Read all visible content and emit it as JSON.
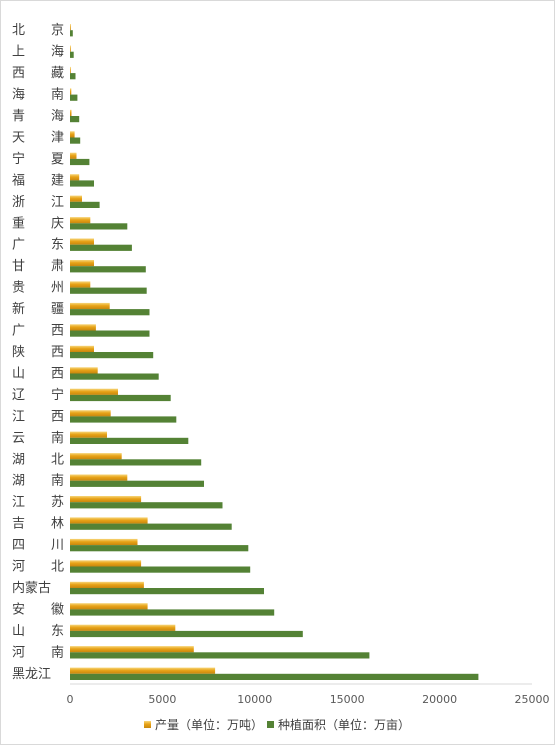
{
  "chart_data": {
    "type": "bar",
    "orientation": "horizontal",
    "categories": [
      "北京",
      "上海",
      "西藏",
      "海南",
      "青海",
      "天津",
      "宁夏",
      "福建",
      "浙江",
      "重庆",
      "广东",
      "甘肃",
      "贵州",
      "新疆",
      "广西",
      "陕西",
      "山西",
      "辽宁",
      "江西",
      "云南",
      "湖北",
      "湖南",
      "江苏",
      "吉林",
      "四川",
      "河北",
      "内蒙古",
      "安徽",
      "山东",
      "河南",
      "黑龙江"
    ],
    "category_display": [
      "北　　京",
      "上　　海",
      "西　　藏",
      "海　　南",
      "青　　海",
      "天　　津",
      "宁　　夏",
      "福　　建",
      "浙　　江",
      "重　　庆",
      "广　　东",
      "甘　　肃",
      "贵　　州",
      "新　　疆",
      "广　　西",
      "陕　　西",
      "山　　西",
      "辽　　宁",
      "江　　西",
      "云　　南",
      "湖　　北",
      "湖　　南",
      "江　　苏",
      "吉　　林",
      "四　　川",
      "河　　北",
      "内蒙古",
      "安　　徽",
      "山　　东",
      "河　　南",
      "黑龙江"
    ],
    "series": [
      {
        "name": "产量（单位：万吨）",
        "color": "#e8a317",
        "values": [
          15,
          10,
          45,
          70,
          80,
          250,
          350,
          500,
          650,
          1100,
          1300,
          1300,
          1100,
          2150,
          1400,
          1300,
          1500,
          2600,
          2200,
          2000,
          2800,
          3100,
          3850,
          4200,
          3650,
          3850,
          4000,
          4200,
          5700,
          6700,
          7850
        ]
      },
      {
        "name": "种植面积（单位：万亩）",
        "color": "#548235",
        "values": [
          150,
          200,
          300,
          400,
          500,
          550,
          1050,
          1300,
          1600,
          3100,
          3350,
          4100,
          4150,
          4300,
          4300,
          4500,
          4800,
          5450,
          5750,
          6400,
          7100,
          7250,
          8250,
          8750,
          9650,
          9750,
          10500,
          11050,
          12600,
          16200,
          22100
        ]
      }
    ],
    "xlim": [
      0,
      25000
    ],
    "xticks": [
      "0",
      "5000",
      "10000",
      "15000",
      "20000",
      "25000"
    ],
    "grid": false,
    "legend_position": "bottom"
  }
}
